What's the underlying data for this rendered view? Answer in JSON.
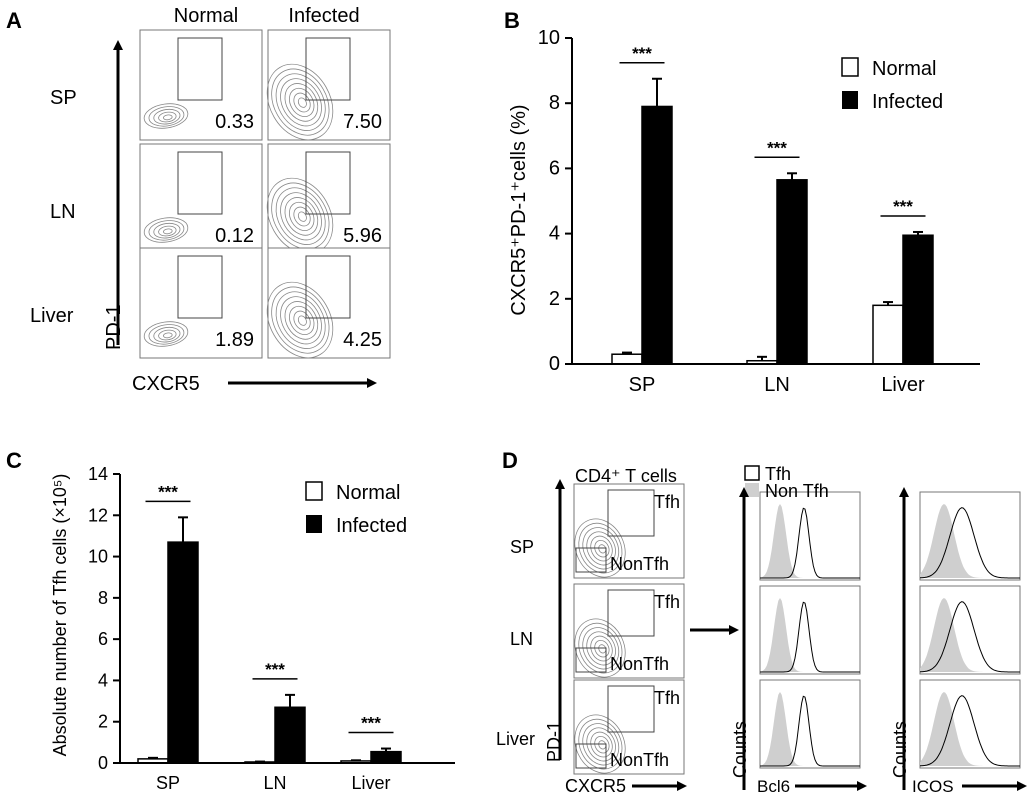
{
  "panel_labels": [
    "A",
    "B",
    "C",
    "D"
  ],
  "panelA": {
    "col_headers": [
      "Normal",
      "Infected"
    ],
    "row_labels": [
      "SP",
      "LN",
      "Liver"
    ],
    "gate_values": [
      [
        "0.33",
        "7.50"
      ],
      [
        "0.12",
        "5.96"
      ],
      [
        "1.89",
        "4.25"
      ]
    ],
    "y_axis": "PD-1",
    "x_axis": "CXCR5"
  },
  "panelD": {
    "title": "CD4⁺ T cells",
    "row_labels": [
      "SP",
      "LN",
      "Liver"
    ],
    "gate_tfh": "Tfh",
    "gate_nontfh": "NonTfh",
    "y_axis": "PD-1",
    "x_axis": "CXCR5",
    "legend": [
      "Tfh",
      "Non Tfh"
    ],
    "hist_y_axis": "Counts",
    "hist_x_axis_1": "Bcl6",
    "hist_x_axis_2": "ICOS"
  },
  "chart_data": [
    {
      "panel": "B",
      "type": "bar",
      "categories": [
        "SP",
        "LN",
        "Liver"
      ],
      "series": [
        {
          "name": "Normal",
          "values": [
            0.3,
            0.1,
            1.8
          ],
          "errors": [
            0.05,
            0.12,
            0.1
          ]
        },
        {
          "name": "Infected",
          "values": [
            7.9,
            5.65,
            3.95
          ],
          "errors": [
            0.85,
            0.2,
            0.1
          ]
        }
      ],
      "significance": [
        "***",
        "***",
        "***"
      ],
      "ylabel": "CXCR5⁺PD-1⁺cells (%)",
      "ylim": [
        0,
        10
      ],
      "yticks": [
        0,
        2,
        4,
        6,
        8,
        10
      ],
      "legend_position": "top-right"
    },
    {
      "panel": "C",
      "type": "bar",
      "categories": [
        "SP",
        "LN",
        "Liver"
      ],
      "series": [
        {
          "name": "Normal",
          "values": [
            0.2,
            0.05,
            0.1
          ],
          "errors": [
            0.05,
            0.02,
            0.03
          ]
        },
        {
          "name": "Infected",
          "values": [
            10.7,
            2.7,
            0.55
          ],
          "errors": [
            1.2,
            0.6,
            0.15
          ]
        }
      ],
      "significance": [
        "***",
        "***",
        "***"
      ],
      "ylabel": "Absolute number of Tfh cells (×10⁵)",
      "ylim": [
        0,
        14
      ],
      "yticks": [
        0,
        2,
        4,
        6,
        8,
        10,
        12,
        14
      ],
      "legend_position": "top-right"
    }
  ],
  "colors": {
    "normal_fill": "#ffffff",
    "infected_fill": "#000000",
    "contour": "#888888",
    "hist_fill": "#cfcfcf"
  }
}
